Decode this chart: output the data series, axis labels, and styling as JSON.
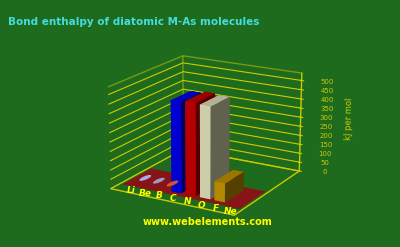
{
  "title": "Bond enthalpy of diatomic M-As molecules",
  "ylabel": "kJ per mol",
  "website": "www.webelements.com",
  "elements": [
    "Li",
    "Be",
    "B",
    "C",
    "N",
    "O",
    "F",
    "Ne"
  ],
  "values": [
    0,
    0,
    0,
    481,
    489,
    484,
    100,
    0
  ],
  "bar_colors": [
    "#0000ee",
    "#cc3300",
    "#ddddff",
    "#0000ee",
    "#cc0000",
    "#e8e8c0",
    "#cc9900",
    "#888888"
  ],
  "dot_colors": [
    "#aaaaee",
    "#9999cc",
    "#cc5533",
    "#cccccc",
    "#cccccc",
    "#cccccc",
    "#cccccc",
    "#cccccc"
  ],
  "background_color": "#1e6b1e",
  "base_color": "#881515",
  "grid_color": "#cccc00",
  "title_color": "#44dddd",
  "label_color": "#ffff00",
  "tick_color": "#cccc00",
  "yticks": [
    0,
    50,
    100,
    150,
    200,
    250,
    300,
    350,
    400,
    450,
    500
  ],
  "ylim": [
    0,
    540
  ],
  "elev": 18,
  "azim": -60,
  "figwidth": 4.0,
  "figheight": 2.47,
  "dpi": 100
}
